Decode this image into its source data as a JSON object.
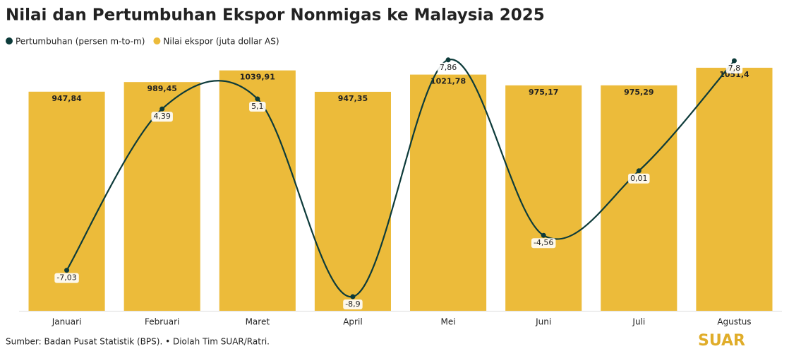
{
  "chart_data": {
    "type": "combo",
    "title": "Nilai dan Pertumbuhan Ekspor Nonmigas ke Malaysia 2025",
    "categories": [
      "Januari",
      "Februari",
      "Maret",
      "April",
      "Mei",
      "Juni",
      "Juli",
      "Agustus"
    ],
    "series": [
      {
        "name": "Pertumbuhan (persen m-to-m)",
        "type": "line",
        "axis": "y2",
        "color": "#0d3b3a",
        "values": [
          -7.03,
          4.39,
          5.1,
          -8.9,
          7.86,
          -4.56,
          0.01,
          7.8
        ],
        "value_labels": [
          "-7,03",
          "4,39",
          "5,1",
          "-8,9",
          "7,86",
          "-4,56",
          "0,01",
          "7,8"
        ]
      },
      {
        "name": "Nilai ekspor (juta dollar AS)",
        "type": "bar",
        "color": "#ecbb3a",
        "values": [
          947.84,
          989.45,
          1039.91,
          947.35,
          1021.78,
          975.17,
          975.29,
          1051.4
        ],
        "value_labels": [
          "947,84",
          "989,45",
          "1039,91",
          "947,35",
          "1021,78",
          "975,17",
          "975,29",
          "1051,4"
        ]
      }
    ],
    "ylim": [
      0,
      1100
    ],
    "y2lim": [
      -9.9,
      8.1
    ],
    "source": "Sumber: Badan Pusat Statistik (BPS). • Diolah Tim SUAR/Ratri.",
    "logo": "SUAR"
  }
}
